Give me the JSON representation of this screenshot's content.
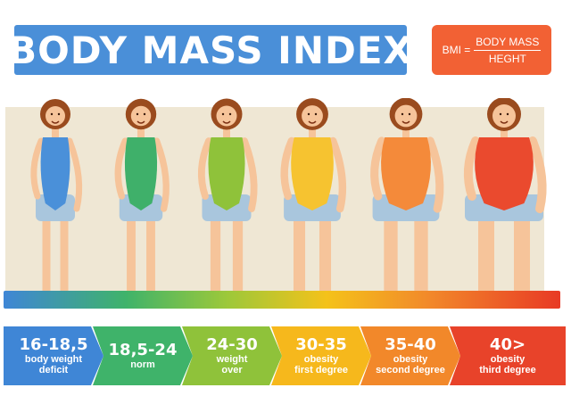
{
  "title": "BODY MASS INDEX",
  "formula": {
    "lhs": "BMI =",
    "numerator": "BODY MASS",
    "denominator": "HEGHT"
  },
  "categories": [
    {
      "range": "16-18,5",
      "label1": "body weight",
      "label2": "deficit",
      "color": "#3f86d6"
    },
    {
      "range": "18,5-24",
      "label1": "norm",
      "label2": "",
      "color": "#3fb36a"
    },
    {
      "range": "24-30",
      "label1": "weight",
      "label2": "over",
      "color": "#8fc23a"
    },
    {
      "range": "30-35",
      "label1": "obesity",
      "label2": "first degree",
      "color": "#f6b81c"
    },
    {
      "range": "35-40",
      "label1": "obesity",
      "label2": "second degree",
      "color": "#f2882a"
    },
    {
      "range": "40>",
      "label1": "obesity",
      "label2": "third degree",
      "color": "#e8432a"
    }
  ],
  "figures": [
    {
      "suit_color": "#4a90d9",
      "build": 1.0
    },
    {
      "suit_color": "#3fb06a",
      "build": 1.1
    },
    {
      "suit_color": "#8fc23a",
      "build": 1.25
    },
    {
      "suit_color": "#f6c330",
      "build": 1.45
    },
    {
      "suit_color": "#f48a3a",
      "build": 1.7
    },
    {
      "suit_color": "#ea4a2e",
      "build": 2.0
    }
  ]
}
